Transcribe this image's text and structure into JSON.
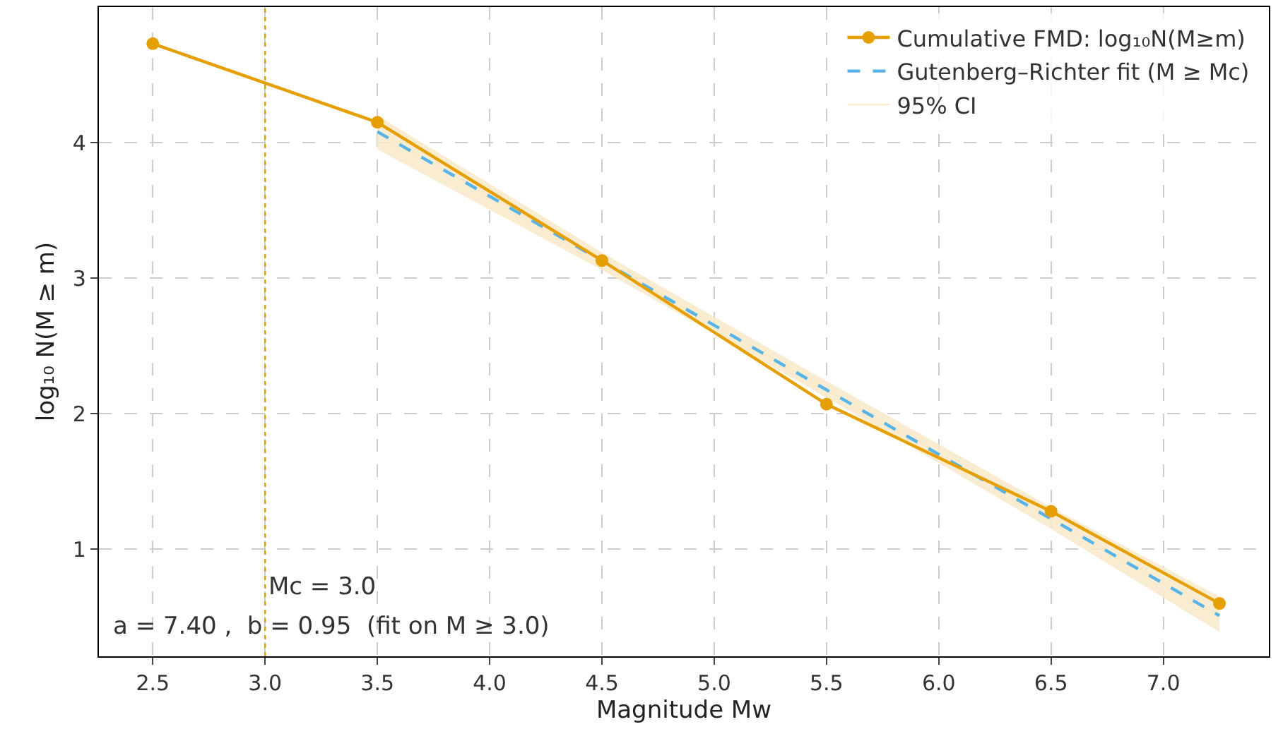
{
  "chart_data": {
    "type": "line",
    "xlabel": "Magnitude Mw",
    "ylabel": "log₁₀ N(M ≥ m)",
    "xlim": [
      2.26,
      7.47
    ],
    "xticks": [
      {
        "value": 2.5,
        "label": "2.5"
      },
      {
        "value": 3.0,
        "label": "3.0"
      },
      {
        "value": 3.5,
        "label": "3.5"
      },
      {
        "value": 4.0,
        "label": "4.0"
      },
      {
        "value": 4.5,
        "label": "4.5"
      },
      {
        "value": 5.0,
        "label": "5.0"
      },
      {
        "value": 5.5,
        "label": "5.5"
      },
      {
        "value": 6.0,
        "label": "6.0"
      },
      {
        "value": 6.5,
        "label": "6.5"
      },
      {
        "value": 7.0,
        "label": "7.0"
      }
    ],
    "ylim": [
      0.21,
      5.0
    ],
    "yticks": [
      1,
      2,
      3,
      4
    ],
    "series": [
      {
        "name": "95% CI",
        "type": "line",
        "color": "#f8e9c8",
        "marker": "none",
        "line_style": "solid",
        "x": [
          3.5,
          4.5,
          5.5,
          6.5,
          7.25
        ],
        "values": [
          4.08,
          3.13,
          2.18,
          1.23,
          0.51
        ],
        "lower": [
          3.95,
          3.06,
          2.12,
          1.15,
          0.39
        ],
        "upper": [
          4.2,
          3.19,
          2.24,
          1.31,
          0.65
        ]
      },
      {
        "name": "Gutenberg–Richter fit (M ≥ Mc)",
        "type": "line",
        "color": "#56b4e9",
        "marker": "none",
        "line_style": "dashed",
        "x": [
          3.5,
          7.25
        ],
        "values": [
          4.08,
          0.51
        ]
      },
      {
        "name": "Cumulative FMD: log₁₀N(M≥m)",
        "type": "line",
        "color": "#e69f00",
        "marker": "circle",
        "line_style": "solid",
        "x": [
          2.5,
          3.5,
          4.5,
          5.5,
          6.5,
          7.25
        ],
        "values": [
          4.73,
          4.15,
          3.13,
          2.07,
          1.28,
          0.6
        ]
      }
    ],
    "ref_lines": [
      {
        "axis": "x",
        "value": 3.0,
        "label": "Mc = 3.0",
        "color": "#d4a017",
        "line_style": "dotted"
      }
    ],
    "annotations": [
      "a = 7.40 ,  b = 0.95  (fit on M ≥ 3.0)"
    ],
    "grid": true,
    "legend": "top right"
  }
}
